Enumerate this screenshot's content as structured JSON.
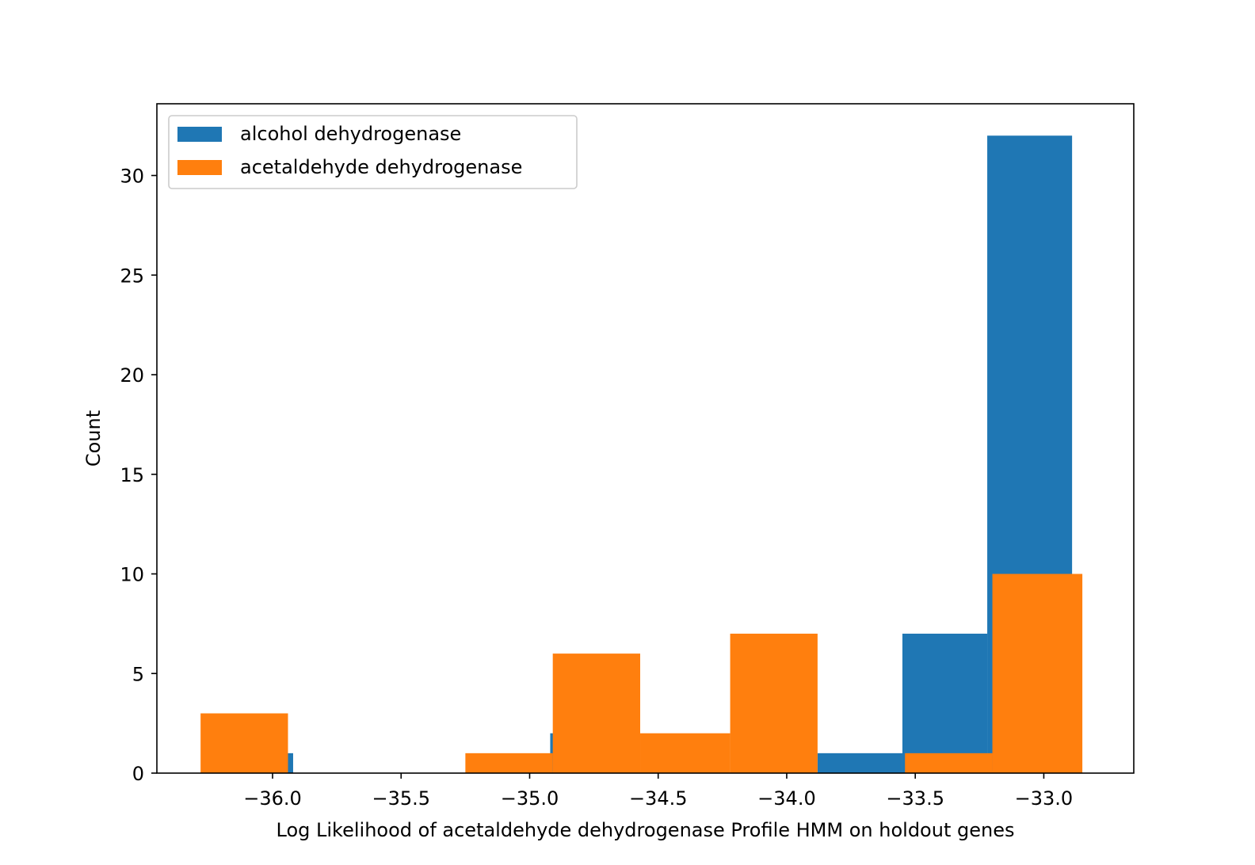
{
  "chart_data": {
    "type": "bar",
    "title": "",
    "xlabel": "Log Likelihood of acetaldehyde dehydrogenase Profile HMM on holdout genes",
    "ylabel": "Count",
    "xlim": [
      -36.45,
      -32.65
    ],
    "ylim": [
      0,
      33.6
    ],
    "x_ticks": [
      -36.0,
      -35.5,
      -35.0,
      -34.5,
      -34.0,
      -33.5,
      -33.0
    ],
    "x_tick_labels": [
      "−36.0",
      "−35.5",
      "−35.0",
      "−34.5",
      "−34.0",
      "−33.5",
      "−33.0"
    ],
    "y_ticks": [
      0,
      5,
      10,
      15,
      20,
      25,
      30
    ],
    "y_tick_labels": [
      "0",
      "5",
      "10",
      "15",
      "20",
      "25",
      "30"
    ],
    "grid": false,
    "legend_position": "top-left",
    "series": [
      {
        "name": "alcohol dehydrogenase",
        "color": "#1f77b4",
        "bins": [
          {
            "x0": -36.25,
            "x1": -35.92,
            "count": 1
          },
          {
            "x0": -35.92,
            "x1": -35.58,
            "count": 0
          },
          {
            "x0": -35.58,
            "x1": -35.25,
            "count": 0
          },
          {
            "x0": -35.25,
            "x1": -34.92,
            "count": 0
          },
          {
            "x0": -34.92,
            "x1": -34.58,
            "count": 2
          },
          {
            "x0": -34.58,
            "x1": -34.25,
            "count": 0
          },
          {
            "x0": -34.25,
            "x1": -33.88,
            "count": 0
          },
          {
            "x0": -33.88,
            "x1": -33.55,
            "count": 1
          },
          {
            "x0": -33.55,
            "x1": -33.22,
            "count": 7
          },
          {
            "x0": -33.22,
            "x1": -32.89,
            "count": 32
          }
        ]
      },
      {
        "name": "acetaldehyde dehydrogenase",
        "color": "#ff7f0e",
        "bins": [
          {
            "x0": -36.28,
            "x1": -35.94,
            "count": 3
          },
          {
            "x0": -35.94,
            "x1": -35.59,
            "count": 0
          },
          {
            "x0": -35.59,
            "x1": -35.25,
            "count": 0
          },
          {
            "x0": -35.25,
            "x1": -34.91,
            "count": 1
          },
          {
            "x0": -34.91,
            "x1": -34.57,
            "count": 6
          },
          {
            "x0": -34.57,
            "x1": -34.22,
            "count": 2
          },
          {
            "x0": -34.22,
            "x1": -33.88,
            "count": 7
          },
          {
            "x0": -33.88,
            "x1": -33.54,
            "count": 0
          },
          {
            "x0": -33.54,
            "x1": -33.2,
            "count": 1
          },
          {
            "x0": -33.2,
            "x1": -32.85,
            "count": 10
          }
        ]
      }
    ]
  }
}
